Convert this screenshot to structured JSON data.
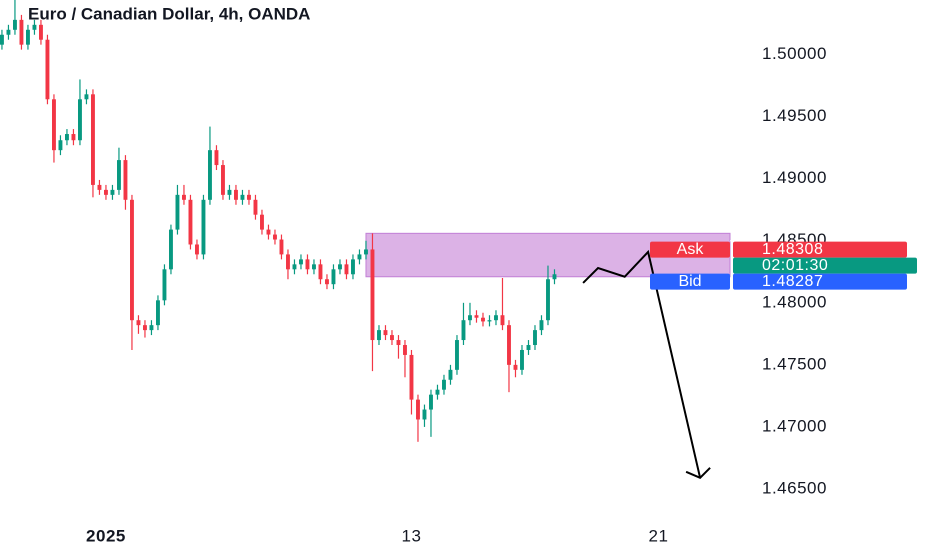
{
  "chart_data": {
    "type": "candlestick",
    "title": "Euro / Canadian Dollar, 4h, OANDA",
    "open": [
      1.5008,
      1.5016,
      1.502,
      1.5028,
      1.5008,
      1.502,
      1.5024,
      1.5012,
      1.4964,
      1.4923,
      1.4931,
      1.4936,
      1.4931,
      1.4964,
      1.4968,
      1.4895,
      1.4891,
      1.4887,
      1.4891,
      1.4915,
      1.4883,
      1.4786,
      1.4782,
      1.4778,
      1.4782,
      1.4802,
      1.4827,
      1.4859,
      1.4887,
      1.4883,
      1.4847,
      1.4839,
      1.4883,
      1.4923,
      1.4911,
      1.4887,
      1.4891,
      1.4883,
      1.4887,
      1.4883,
      1.4871,
      1.4859,
      1.4855,
      1.4851,
      1.4839,
      1.4827,
      1.4831,
      1.4835,
      1.4827,
      1.4831,
      1.4819,
      1.4815,
      1.4827,
      1.4831,
      1.4823,
      1.4835,
      1.4839,
      1.4843,
      1.477,
      1.4778,
      1.4774,
      1.477,
      1.4766,
      1.4758,
      1.4722,
      1.4706,
      1.4714,
      1.4726,
      1.473,
      1.4738,
      1.4746,
      1.477,
      1.4786,
      1.479,
      1.4788,
      1.4785,
      1.4786,
      1.479,
      1.4782,
      1.475,
      1.4746,
      1.4762,
      1.4766,
      1.4778,
      1.4786,
      1.4819
    ],
    "high": [
      1.502,
      1.5024,
      1.5044,
      1.5032,
      1.5024,
      1.5028,
      1.5028,
      1.5016,
      1.4968,
      1.4935,
      1.494,
      1.494,
      1.498,
      1.4972,
      1.4972,
      1.4899,
      1.4895,
      1.4895,
      1.4925,
      1.4919,
      1.4887,
      1.479,
      1.4786,
      1.4786,
      1.4806,
      1.4831,
      1.4863,
      1.4895,
      1.4895,
      1.4887,
      1.4851,
      1.4887,
      1.4942,
      1.4927,
      1.4915,
      1.4895,
      1.4895,
      1.4891,
      1.4891,
      1.4887,
      1.4875,
      1.4863,
      1.4859,
      1.4855,
      1.4843,
      1.4835,
      1.4839,
      1.4839,
      1.4835,
      1.4835,
      1.4823,
      1.4831,
      1.4835,
      1.4835,
      1.4839,
      1.4843,
      1.485,
      1.4856,
      1.4782,
      1.4782,
      1.4778,
      1.4774,
      1.477,
      1.4762,
      1.4726,
      1.4718,
      1.473,
      1.4734,
      1.4742,
      1.475,
      1.4774,
      1.48,
      1.48,
      1.4794,
      1.4792,
      1.479,
      1.4794,
      1.482,
      1.4786,
      1.4754,
      1.4766,
      1.477,
      1.4782,
      1.479,
      1.483,
      1.4827
    ],
    "low": [
      1.5004,
      1.5012,
      1.5016,
      1.5004,
      1.5004,
      1.5016,
      1.5008,
      1.496,
      1.4913,
      1.4919,
      1.4927,
      1.4927,
      1.4927,
      1.496,
      1.4885,
      1.4887,
      1.4883,
      1.4883,
      1.4887,
      1.4875,
      1.4762,
      1.4775,
      1.4772,
      1.4774,
      1.4778,
      1.4798,
      1.4823,
      1.4855,
      1.4879,
      1.4843,
      1.4835,
      1.4835,
      1.4879,
      1.4907,
      1.4883,
      1.4883,
      1.4879,
      1.4879,
      1.4879,
      1.4867,
      1.4855,
      1.4851,
      1.4847,
      1.4835,
      1.4819,
      1.4823,
      1.4827,
      1.4823,
      1.4823,
      1.4815,
      1.4811,
      1.4811,
      1.4823,
      1.4819,
      1.4819,
      1.4831,
      1.4835,
      1.4745,
      1.4766,
      1.477,
      1.4766,
      1.4755,
      1.474,
      1.471,
      1.4688,
      1.47,
      1.4692,
      1.4722,
      1.4726,
      1.4734,
      1.4742,
      1.4766,
      1.4782,
      1.4784,
      1.4781,
      1.4781,
      1.4782,
      1.4778,
      1.4728,
      1.474,
      1.4742,
      1.4758,
      1.4762,
      1.4774,
      1.4782,
      1.4815
    ],
    "close": [
      1.5016,
      1.502,
      1.5028,
      1.5008,
      1.502,
      1.5024,
      1.5012,
      1.4964,
      1.4923,
      1.4931,
      1.4936,
      1.4931,
      1.4964,
      1.4968,
      1.4895,
      1.4891,
      1.4887,
      1.4891,
      1.4915,
      1.4883,
      1.4786,
      1.4782,
      1.4778,
      1.4782,
      1.4802,
      1.4827,
      1.4859,
      1.4887,
      1.4883,
      1.4847,
      1.4839,
      1.4883,
      1.4923,
      1.4911,
      1.4887,
      1.4891,
      1.4883,
      1.4887,
      1.4883,
      1.4871,
      1.4859,
      1.4855,
      1.4851,
      1.4839,
      1.4827,
      1.4831,
      1.4835,
      1.4827,
      1.4831,
      1.4819,
      1.4815,
      1.4827,
      1.4831,
      1.4823,
      1.4835,
      1.4839,
      1.4843,
      1.477,
      1.4778,
      1.4774,
      1.477,
      1.4766,
      1.4758,
      1.4722,
      1.4706,
      1.4714,
      1.4726,
      1.473,
      1.4738,
      1.4746,
      1.477,
      1.4786,
      1.479,
      1.4788,
      1.4785,
      1.4786,
      1.479,
      1.4782,
      1.475,
      1.4746,
      1.4762,
      1.4766,
      1.4778,
      1.4786,
      1.4819,
      1.4823
    ],
    "up_color": "#089981",
    "down_color": "#f23645",
    "xlim": [
      -0.3,
      112
    ],
    "xticks": [
      {
        "value": 16,
        "label": "2025"
      },
      {
        "value": 63,
        "label": "13"
      },
      {
        "value": 101,
        "label": "21"
      }
    ],
    "ylim": [
      1.4625,
      1.5044
    ],
    "yticks": [
      {
        "value": 1.465,
        "label": "1.46500"
      },
      {
        "value": 1.47,
        "label": "1.47000"
      },
      {
        "value": 1.475,
        "label": "1.47500"
      },
      {
        "value": 1.48,
        "label": "1.48000"
      },
      {
        "value": 1.485,
        "label": "1.48500"
      },
      {
        "value": 1.49,
        "label": "1.49000"
      },
      {
        "value": 1.495,
        "label": "1.49500"
      },
      {
        "value": 1.5,
        "label": "1.50000"
      }
    ],
    "zone": {
      "x_start": 56,
      "low": 1.4821,
      "high": 1.4856,
      "color": "#dcb2e6"
    },
    "projection": {
      "x": [
        89.4,
        91.7,
        95.8,
        99.4,
        107.4
      ],
      "y": [
        1.4816,
        1.4828,
        1.4821,
        1.4841,
        1.4659
      ]
    },
    "ask": {
      "label": "Ask",
      "value": 1.48308,
      "color": "#f23645"
    },
    "countdown": {
      "label": "02:01:30",
      "color": "#089981"
    },
    "bid": {
      "label": "Bid",
      "value": 1.48287,
      "color": "#2962ff"
    }
  }
}
